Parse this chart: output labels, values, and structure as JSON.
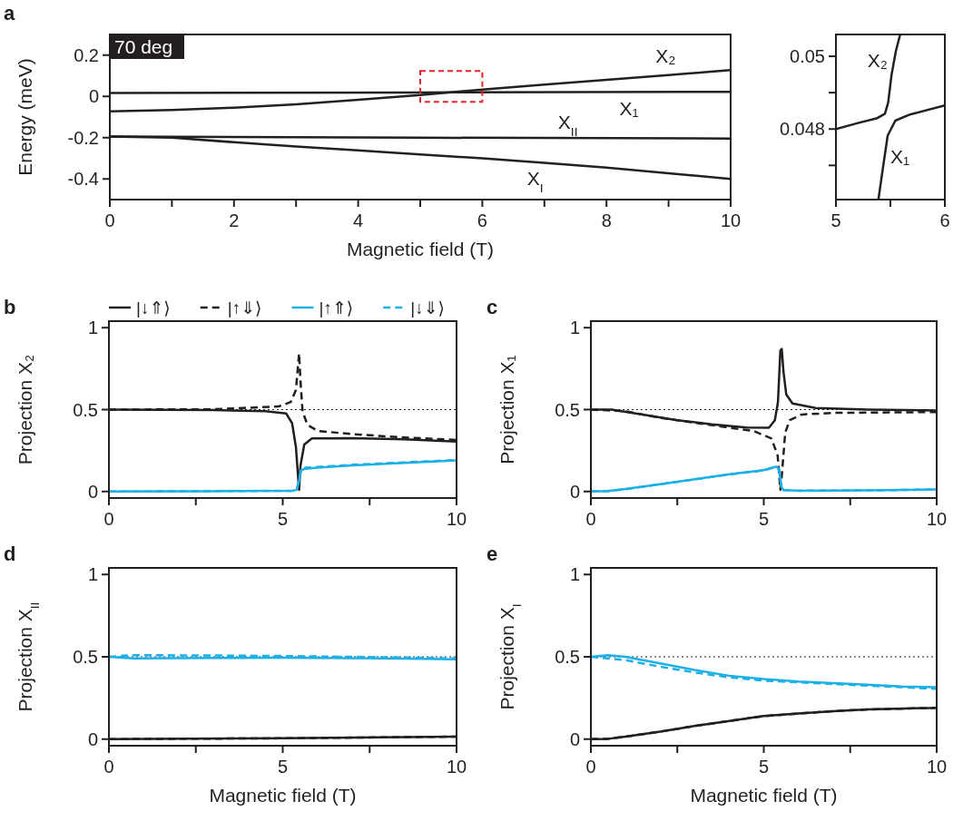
{
  "chart_data": [
    {
      "type": "line",
      "title": "a",
      "xlabel": "Magnetic field (T)",
      "ylabel": "Energy (meV)",
      "xlim": [
        0,
        10
      ],
      "ylim": [
        -0.5,
        0.3
      ],
      "xticks": [
        0,
        {
          "value": 1,
          "label": null
        },
        2,
        {
          "value": 3,
          "label": null
        },
        4,
        {
          "value": 5,
          "label": null
        },
        6,
        {
          "value": 7,
          "label": null
        },
        8,
        {
          "value": 9,
          "label": null
        },
        10
      ],
      "yticks": [
        -0.4,
        -0.2,
        0,
        0.2
      ],
      "series": [
        {
          "name": "X₂",
          "color": "#231f20",
          "line_style": "solid",
          "x": [
            0,
            1,
            2,
            3,
            4,
            5,
            6,
            7,
            8,
            9,
            10
          ],
          "values": [
            -0.072,
            -0.066,
            -0.055,
            -0.038,
            -0.016,
            0.007,
            0.033,
            0.057,
            0.08,
            0.103,
            0.128
          ]
        },
        {
          "name": "X₁",
          "color": "#231f20",
          "line_style": "solid",
          "x": [
            0,
            5,
            10
          ],
          "values": [
            0.016,
            0.019,
            0.022
          ]
        },
        {
          "name": "X$_{II}$",
          "color": "#231f20",
          "line_style": "solid",
          "x": [
            0,
            5,
            10
          ],
          "values": [
            -0.195,
            -0.2,
            -0.204
          ]
        },
        {
          "name": "X$_{I}$",
          "color": "#231f20",
          "line_style": "solid",
          "x": [
            0,
            1,
            2,
            3,
            4,
            5,
            6,
            7,
            8,
            9,
            10
          ],
          "values": [
            -0.195,
            -0.2,
            -0.222,
            -0.243,
            -0.262,
            -0.281,
            -0.3,
            -0.322,
            -0.345,
            -0.372,
            -0.4
          ]
        }
      ],
      "annotations": [
        "70 deg"
      ]
    },
    {
      "type": "line",
      "xlim": [
        5,
        6
      ],
      "ylim": [
        0.04606,
        0.0506
      ],
      "xticks": [
        5,
        {
          "value": 5.5,
          "label": null
        },
        6
      ],
      "yticks": [
        {
          "value": 0.047,
          "label": null
        },
        0.048,
        {
          "value": 0.049,
          "label": null
        },
        0.05
      ],
      "series": [
        {
          "name": "X₂",
          "color": "#231f20",
          "line_style": "solid",
          "x": [
            5,
            5.21,
            5.38,
            5.45,
            5.48,
            5.51,
            5.55,
            5.59
          ],
          "values": [
            0.048,
            0.04817,
            0.0483,
            0.04842,
            0.04873,
            0.04948,
            0.05014,
            0.0506
          ]
        },
        {
          "name": "X₁",
          "color": "#231f20",
          "line_style": "solid",
          "x": [
            5.39,
            5.43,
            5.475,
            5.545,
            5.68,
            6
          ],
          "values": [
            0.04606,
            0.0469,
            0.04782,
            0.04823,
            0.0484,
            0.04865
          ]
        }
      ]
    },
    {
      "type": "line",
      "title": "b",
      "ylabel": "Projection X₂",
      "xlim": [
        0,
        10
      ],
      "ylim": [
        -0.04,
        1.04
      ],
      "xticks": [
        0,
        {
          "value": 2.5,
          "label": null
        },
        5,
        {
          "value": 7.5,
          "label": null
        },
        10
      ],
      "yticks": [
        0,
        0.5,
        1
      ],
      "legend": "top",
      "ref_lines": [
        {
          "axis": "y",
          "value": 0.5,
          "color": "#231f20",
          "line_style": "dotted"
        }
      ],
      "series": [
        {
          "name": "|↓⇑⟩",
          "color": "#231f20",
          "line_style": "solid",
          "x": [
            0,
            3,
            4.5,
            5.1,
            5.27,
            5.38,
            5.47,
            5.51,
            5.62,
            5.84,
            7,
            8.5,
            10
          ],
          "values": [
            0.5,
            0.497,
            0.49,
            0.476,
            0.417,
            0.27,
            0.01,
            0.157,
            0.287,
            0.324,
            0.325,
            0.318,
            0.305
          ]
        },
        {
          "name": "|↑⇓⟩",
          "color": "#231f20",
          "line_style": "dashed",
          "x": [
            0,
            3,
            4.88,
            5.23,
            5.38,
            5.47,
            5.51,
            5.57,
            5.71,
            6.01,
            7,
            8.5,
            10
          ],
          "values": [
            0.5,
            0.502,
            0.519,
            0.546,
            0.62,
            0.843,
            0.676,
            0.49,
            0.407,
            0.37,
            0.35,
            0.33,
            0.315
          ]
        },
        {
          "name": "|↑⇑⟩",
          "color": "#1cb0e6",
          "line_style": "solid",
          "x": [
            0,
            3,
            5.3,
            5.4,
            5.47,
            5.53,
            5.66,
            6,
            7,
            8.5,
            10
          ],
          "values": [
            0,
            0.002,
            0.005,
            0.01,
            0.065,
            0.13,
            0.139,
            0.145,
            0.16,
            0.175,
            0.19
          ]
        },
        {
          "name": "|↓⇓⟩",
          "color": "#1cb0e6",
          "line_style": "dashed",
          "x": [
            0,
            3,
            5.3,
            5.4,
            5.47,
            5.53,
            5.66,
            6,
            7,
            8.5,
            10
          ],
          "values": [
            0,
            0.002,
            0.005,
            0.012,
            0.07,
            0.14,
            0.145,
            0.15,
            0.163,
            0.178,
            0.192
          ]
        }
      ]
    },
    {
      "type": "line",
      "title": "c",
      "ylabel": "Projection X₁",
      "xlim": [
        0,
        10
      ],
      "ylim": [
        -0.04,
        1.04
      ],
      "xticks": [
        0,
        {
          "value": 2.5,
          "label": null
        },
        5,
        {
          "value": 7.5,
          "label": null
        },
        10
      ],
      "yticks": [
        0,
        0.5,
        1
      ],
      "ref_lines": [
        {
          "axis": "y",
          "value": 0.5,
          "color": "#231f20",
          "line_style": "dotted"
        }
      ],
      "series": [
        {
          "color": "#231f20",
          "line_style": "solid",
          "x": [
            0,
            0.6,
            1.5,
            2.5,
            3.5,
            4.5,
            5.15,
            5.32,
            5.41,
            5.48,
            5.52,
            5.57,
            5.65,
            5.83,
            6.5,
            8,
            10
          ],
          "values": [
            0.5,
            0.5,
            0.47,
            0.435,
            0.41,
            0.39,
            0.389,
            0.435,
            0.546,
            0.861,
            0.87,
            0.73,
            0.593,
            0.537,
            0.51,
            0.5,
            0.495
          ]
        },
        {
          "color": "#231f20",
          "line_style": "dashed",
          "x": [
            0,
            1,
            2,
            3,
            4,
            4.7,
            5.22,
            5.4,
            5.48,
            5.53,
            5.62,
            5.75,
            6.1,
            7,
            10
          ],
          "values": [
            0.5,
            0.49,
            0.45,
            0.42,
            0.39,
            0.37,
            0.324,
            0.222,
            0.01,
            0.12,
            0.36,
            0.435,
            0.47,
            0.48,
            0.485
          ]
        },
        {
          "color": "#1cb0e6",
          "line_style": "solid",
          "x": [
            0,
            0.5,
            1,
            2,
            3,
            4,
            5,
            5.35,
            5.44,
            5.51,
            5.57,
            6,
            8,
            10
          ],
          "values": [
            0,
            0.003,
            0.015,
            0.045,
            0.075,
            0.105,
            0.13,
            0.152,
            0.139,
            0.028,
            0.009,
            0.005,
            0.007,
            0.013
          ]
        },
        {
          "color": "#1cb0e6",
          "line_style": "dashed",
          "x": [
            0,
            0.5,
            1,
            2,
            3,
            4,
            5,
            5.35,
            5.44,
            5.51,
            5.57,
            6,
            8,
            10
          ],
          "values": [
            0,
            0.003,
            0.014,
            0.044,
            0.074,
            0.104,
            0.129,
            0.15,
            0.137,
            0.026,
            0.008,
            0.005,
            0.007,
            0.012
          ]
        }
      ]
    },
    {
      "type": "line",
      "title": "d",
      "xlabel": "Magnetic field (T)",
      "ylabel": "Projection X$_{II}$",
      "xlim": [
        0,
        10
      ],
      "ylim": [
        -0.04,
        1.04
      ],
      "xticks": [
        0,
        {
          "value": 2.5,
          "label": null
        },
        5,
        {
          "value": 7.5,
          "label": null
        },
        10
      ],
      "yticks": [
        0,
        0.5,
        1
      ],
      "ref_lines": [
        {
          "axis": "y",
          "value": 0.5,
          "color": "#231f20",
          "line_style": "dotted"
        }
      ],
      "series": [
        {
          "color": "#231f20",
          "line_style": "solid",
          "x": [
            0,
            5,
            10
          ],
          "values": [
            0,
            0.005,
            0.015
          ]
        },
        {
          "color": "#231f20",
          "line_style": "dashed",
          "x": [
            0,
            5,
            10
          ],
          "values": [
            0,
            0.005,
            0.015
          ]
        },
        {
          "color": "#1cb0e6",
          "line_style": "solid",
          "x": [
            0,
            0.7,
            3,
            5,
            8,
            10
          ],
          "values": [
            0.5,
            0.49,
            0.493,
            0.495,
            0.49,
            0.485
          ]
        },
        {
          "color": "#1cb0e6",
          "line_style": "dashed",
          "x": [
            0,
            0.7,
            3,
            5,
            8,
            10
          ],
          "values": [
            0.5,
            0.51,
            0.508,
            0.505,
            0.497,
            0.49
          ]
        }
      ]
    },
    {
      "type": "line",
      "title": "e",
      "xlabel": "Magnetic field (T)",
      "ylabel": "Projection X$_{I}$",
      "xlim": [
        0,
        10
      ],
      "ylim": [
        -0.04,
        1.04
      ],
      "xticks": [
        0,
        {
          "value": 2.5,
          "label": null
        },
        5,
        {
          "value": 7.5,
          "label": null
        },
        10
      ],
      "yticks": [
        0,
        0.5,
        1
      ],
      "ref_lines": [
        {
          "axis": "y",
          "value": 0.5,
          "color": "#231f20",
          "line_style": "dotted"
        }
      ],
      "series": [
        {
          "color": "#231f20",
          "line_style": "solid",
          "x": [
            0,
            0.5,
            1,
            2,
            3,
            4,
            5,
            6,
            7,
            8,
            10
          ],
          "values": [
            0,
            0.002,
            0.015,
            0.045,
            0.08,
            0.11,
            0.14,
            0.155,
            0.17,
            0.18,
            0.19
          ]
        },
        {
          "color": "#231f20",
          "line_style": "dashed",
          "x": [
            0,
            0.5,
            1,
            2,
            3,
            4,
            5,
            6,
            7,
            8,
            10
          ],
          "values": [
            0,
            0.002,
            0.015,
            0.045,
            0.08,
            0.11,
            0.14,
            0.155,
            0.17,
            0.18,
            0.19
          ]
        },
        {
          "color": "#1cb0e6",
          "line_style": "solid",
          "x": [
            0,
            0.5,
            1,
            2,
            3,
            4,
            5,
            6,
            7,
            8,
            9,
            10
          ],
          "values": [
            0.5,
            0.51,
            0.5,
            0.46,
            0.42,
            0.385,
            0.365,
            0.35,
            0.34,
            0.33,
            0.32,
            0.315
          ]
        },
        {
          "color": "#1cb0e6",
          "line_style": "dashed",
          "x": [
            0,
            0.5,
            1,
            2,
            3,
            4,
            5,
            6,
            7,
            8,
            10
          ],
          "values": [
            0.5,
            0.49,
            0.48,
            0.44,
            0.405,
            0.375,
            0.355,
            0.345,
            0.335,
            0.325,
            0.305
          ]
        }
      ]
    }
  ]
}
